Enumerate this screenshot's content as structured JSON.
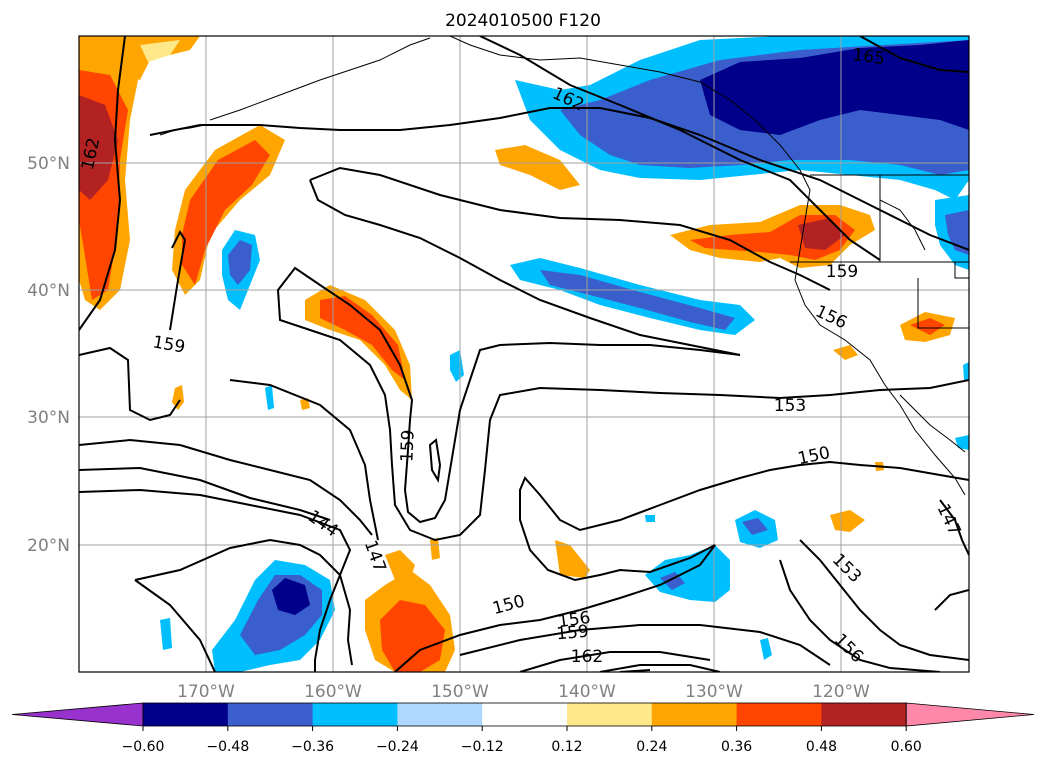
{
  "title": "2024010500 F120",
  "map": {
    "lat_ticks": [
      "50°N",
      "40°N",
      "30°N",
      "20°N"
    ],
    "lon_ticks": [
      "170°W",
      "160°W",
      "150°W",
      "140°W",
      "130°W",
      "120°W"
    ],
    "extent": {
      "lon_min": -180,
      "lon_max": -110,
      "lat_min": 10,
      "lat_max": 60
    },
    "gridlines": true
  },
  "contour_labels": [
    "165",
    "162",
    "162",
    "159",
    "159",
    "159",
    "156",
    "153",
    "150",
    "150",
    "147",
    "147",
    "144",
    "153",
    "156",
    "156",
    "159",
    "162"
  ],
  "colorbar": {
    "tick_labels": [
      "−0.60",
      "−0.48",
      "−0.36",
      "−0.24",
      "−0.12",
      "0.12",
      "0.24",
      "0.36",
      "0.48",
      "0.60"
    ],
    "colors": [
      "#9932cc",
      "#00008b",
      "#3a5fcd",
      "#00bfff",
      "#add8ff",
      "#ffffff",
      "#ffe88a",
      "#ffa500",
      "#ff4500",
      "#b22222",
      "#ff88aa"
    ],
    "extend": "both"
  }
}
